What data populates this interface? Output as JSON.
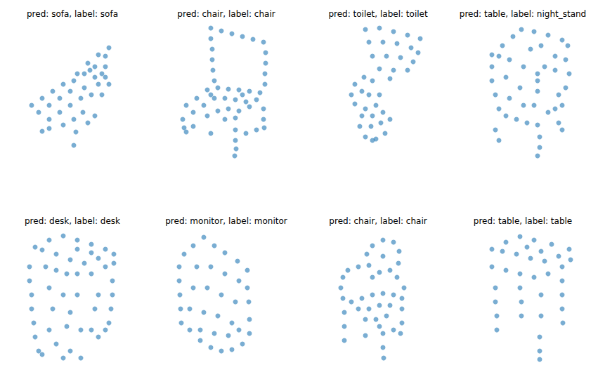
{
  "chart_data": [
    {
      "type": "scatter",
      "title": "pred: sofa, label: sofa",
      "xlim": [
        0,
        180
      ],
      "ylim": [
        0,
        210
      ],
      "tick_labels": false,
      "color": "#1f77b4",
      "marker": "circle",
      "points": [
        [
          37,
          90
        ],
        [
          52,
          100
        ],
        [
          67,
          110
        ],
        [
          82,
          120
        ],
        [
          47,
          80
        ],
        [
          62,
          90
        ],
        [
          77,
          100
        ],
        [
          92,
          110
        ],
        [
          62,
          70
        ],
        [
          77,
          80
        ],
        [
          92,
          90
        ],
        [
          107,
          100
        ],
        [
          82,
          62
        ],
        [
          97,
          70
        ],
        [
          110,
          80
        ],
        [
          100,
          52
        ],
        [
          117,
          65
        ],
        [
          127,
          75
        ],
        [
          97,
          125
        ],
        [
          112,
          135
        ],
        [
          127,
          145
        ],
        [
          142,
          160
        ],
        [
          147,
          172
        ],
        [
          132,
          162
        ],
        [
          117,
          150
        ],
        [
          102,
          135
        ],
        [
          142,
          145
        ],
        [
          142,
          130
        ],
        [
          147,
          120
        ],
        [
          132,
          120
        ],
        [
          122,
          105
        ],
        [
          137,
          135
        ],
        [
          127,
          130
        ],
        [
          112,
          115
        ],
        [
          137,
          105
        ],
        [
          120,
          140
        ],
        [
          52,
          53
        ],
        [
          97,
          33
        ],
        [
          62,
          57
        ]
      ]
    },
    {
      "type": "scatter",
      "title": "pred: chair, label: chair",
      "xlim": [
        0,
        180
      ],
      "ylim": [
        0,
        210
      ],
      "tick_labels": false,
      "color": "#1f77b4",
      "marker": "circle",
      "points": [
        [
          73,
          200
        ],
        [
          88,
          196
        ],
        [
          103,
          192
        ],
        [
          118,
          188
        ],
        [
          133,
          184
        ],
        [
          148,
          180
        ],
        [
          73,
          185
        ],
        [
          75,
          170
        ],
        [
          75,
          155
        ],
        [
          76,
          140
        ],
        [
          78,
          125
        ],
        [
          151,
          165
        ],
        [
          151,
          150
        ],
        [
          150,
          135
        ],
        [
          150,
          120
        ],
        [
          38,
          90
        ],
        [
          53,
          100
        ],
        [
          68,
          112
        ],
        [
          83,
          115
        ],
        [
          98,
          113
        ],
        [
          113,
          112
        ],
        [
          128,
          110
        ],
        [
          143,
          108
        ],
        [
          48,
          80
        ],
        [
          63,
          90
        ],
        [
          78,
          100
        ],
        [
          93,
          100
        ],
        [
          108,
          98
        ],
        [
          123,
          95
        ],
        [
          138,
          98
        ],
        [
          68,
          75
        ],
        [
          83,
          82
        ],
        [
          98,
          85
        ],
        [
          113,
          82
        ],
        [
          128,
          88
        ],
        [
          93,
          70
        ],
        [
          108,
          72
        ],
        [
          73,
          105
        ],
        [
          118,
          105
        ],
        [
          33,
          70
        ],
        [
          35,
          58
        ],
        [
          38,
          52
        ],
        [
          108,
          55
        ],
        [
          108,
          40
        ],
        [
          109,
          28
        ],
        [
          107,
          18
        ],
        [
          148,
          85
        ],
        [
          148,
          70
        ],
        [
          149,
          58
        ],
        [
          48,
          60
        ],
        [
          73,
          50
        ],
        [
          123,
          50
        ],
        [
          138,
          55
        ]
      ]
    },
    {
      "type": "scatter",
      "title": "pred: toilet, label: toilet",
      "xlim": [
        0,
        180
      ],
      "ylim": [
        0,
        210
      ],
      "tick_labels": false,
      "color": "#1f77b4",
      "marker": "circle",
      "points": [
        [
          77,
          198
        ],
        [
          97,
          200
        ],
        [
          117,
          195
        ],
        [
          137,
          190
        ],
        [
          155,
          185
        ],
        [
          82,
          180
        ],
        [
          102,
          180
        ],
        [
          122,
          178
        ],
        [
          142,
          172
        ],
        [
          152,
          165
        ],
        [
          87,
          160
        ],
        [
          107,
          160
        ],
        [
          127,
          158
        ],
        [
          145,
          152
        ],
        [
          97,
          142
        ],
        [
          117,
          140
        ],
        [
          137,
          140
        ],
        [
          112,
          128
        ],
        [
          62,
          120
        ],
        [
          57,
          105
        ],
        [
          62,
          92
        ],
        [
          77,
          85
        ],
        [
          92,
          90
        ],
        [
          97,
          105
        ],
        [
          87,
          125
        ],
        [
          75,
          130
        ],
        [
          72,
          110
        ],
        [
          82,
          105
        ],
        [
          72,
          75
        ],
        [
          87,
          75
        ],
        [
          102,
          80
        ],
        [
          69,
          60
        ],
        [
          85,
          60
        ],
        [
          99,
          65
        ],
        [
          77,
          45
        ],
        [
          92,
          42
        ],
        [
          105,
          50
        ],
        [
          112,
          70
        ],
        [
          87,
          40
        ]
      ]
    },
    {
      "type": "scatter",
      "title": "pred: table, label: night_stand",
      "xlim": [
        0,
        180
      ],
      "ylim": [
        0,
        210
      ],
      "tick_labels": false,
      "color": "#1f77b4",
      "marker": "circle",
      "points": [
        [
          51,
          162
        ],
        [
          66,
          175
        ],
        [
          81,
          188
        ],
        [
          93,
          198
        ],
        [
          111,
          195
        ],
        [
          131,
          190
        ],
        [
          151,
          183
        ],
        [
          159,
          175
        ],
        [
          141,
          160
        ],
        [
          126,
          145
        ],
        [
          116,
          135
        ],
        [
          96,
          145
        ],
        [
          76,
          155
        ],
        [
          61,
          160
        ],
        [
          106,
          170
        ],
        [
          121,
          175
        ],
        [
          51,
          145
        ],
        [
          51,
          125
        ],
        [
          56,
          105
        ],
        [
          61,
          85
        ],
        [
          71,
          75
        ],
        [
          86,
          70
        ],
        [
          101,
          65
        ],
        [
          116,
          62
        ],
        [
          111,
          90
        ],
        [
          116,
          110
        ],
        [
          116,
          125
        ],
        [
          91,
          115
        ],
        [
          76,
          100
        ],
        [
          96,
          90
        ],
        [
          71,
          130
        ],
        [
          141,
          140
        ],
        [
          156,
          155
        ],
        [
          161,
          135
        ],
        [
          156,
          115
        ],
        [
          151,
          90
        ],
        [
          141,
          85
        ],
        [
          131,
          80
        ],
        [
          146,
          105
        ],
        [
          56,
          55
        ],
        [
          61,
          40
        ],
        [
          119,
          45
        ],
        [
          119,
          30
        ],
        [
          116,
          18
        ],
        [
          146,
          65
        ],
        [
          151,
          55
        ]
      ]
    },
    {
      "type": "scatter",
      "title": "pred: desk, label: desk",
      "xlim": [
        0,
        180
      ],
      "ylim": [
        0,
        210
      ],
      "tick_labels": false,
      "color": "#1f77b4",
      "marker": "circle",
      "points": [
        [
          42,
          178
        ],
        [
          62,
          188
        ],
        [
          82,
          194
        ],
        [
          102,
          188
        ],
        [
          122,
          182
        ],
        [
          142,
          175
        ],
        [
          154,
          168
        ],
        [
          132,
          162
        ],
        [
          112,
          155
        ],
        [
          92,
          160
        ],
        [
          72,
          168
        ],
        [
          52,
          174
        ],
        [
          102,
          175
        ],
        [
          122,
          170
        ],
        [
          34,
          150
        ],
        [
          34,
          130
        ],
        [
          37,
          110
        ],
        [
          37,
          90
        ],
        [
          40,
          70
        ],
        [
          42,
          50
        ],
        [
          47,
          30
        ],
        [
          57,
          150
        ],
        [
          72,
          145
        ],
        [
          87,
          140
        ],
        [
          102,
          140
        ],
        [
          62,
          120
        ],
        [
          82,
          110
        ],
        [
          102,
          110
        ],
        [
          67,
          90
        ],
        [
          92,
          85
        ],
        [
          62,
          60
        ],
        [
          87,
          65
        ],
        [
          107,
          60
        ],
        [
          72,
          40
        ],
        [
          92,
          30
        ],
        [
          107,
          20
        ],
        [
          52,
          25
        ],
        [
          82,
          20
        ],
        [
          122,
          140
        ],
        [
          142,
          150
        ],
        [
          154,
          155
        ],
        [
          152,
          130
        ],
        [
          152,
          110
        ],
        [
          150,
          90
        ],
        [
          147,
          70
        ],
        [
          142,
          60
        ],
        [
          132,
          50
        ],
        [
          122,
          60
        ],
        [
          132,
          110
        ],
        [
          127,
          90
        ]
      ]
    },
    {
      "type": "scatter",
      "title": "pred: monitor, label: monitor",
      "xlim": [
        0,
        180
      ],
      "ylim": [
        0,
        210
      ],
      "tick_labels": false,
      "color": "#1f77b4",
      "marker": "circle",
      "points": [
        [
          63,
          192
        ],
        [
          48,
          180
        ],
        [
          35,
          168
        ],
        [
          78,
          180
        ],
        [
          93,
          170
        ],
        [
          111,
          158
        ],
        [
          125,
          145
        ],
        [
          28,
          150
        ],
        [
          28,
          130
        ],
        [
          29,
          110
        ],
        [
          30,
          90
        ],
        [
          31,
          70
        ],
        [
          43,
          60
        ],
        [
          58,
          45
        ],
        [
          73,
          35
        ],
        [
          88,
          30
        ],
        [
          103,
          32
        ],
        [
          118,
          40
        ],
        [
          128,
          55
        ],
        [
          128,
          75
        ],
        [
          127,
          100
        ],
        [
          125,
          120
        ],
        [
          53,
          150
        ],
        [
          73,
          150
        ],
        [
          93,
          140
        ],
        [
          113,
          130
        ],
        [
          48,
          120
        ],
        [
          68,
          120
        ],
        [
          88,
          110
        ],
        [
          108,
          100
        ],
        [
          43,
          90
        ],
        [
          63,
          85
        ],
        [
          83,
          80
        ],
        [
          103,
          70
        ],
        [
          58,
          60
        ],
        [
          78,
          55
        ],
        [
          98,
          52
        ],
        [
          113,
          60
        ]
      ]
    },
    {
      "type": "scatter",
      "title": "pred: chair, label: chair",
      "xlim": [
        0,
        180
      ],
      "ylim": [
        0,
        210
      ],
      "tick_labels": false,
      "color": "#1f77b4",
      "marker": "circle",
      "points": [
        [
          87,
          180
        ],
        [
          102,
          188
        ],
        [
          117,
          185
        ],
        [
          125,
          172
        ],
        [
          124,
          155
        ],
        [
          112,
          145
        ],
        [
          97,
          142
        ],
        [
          82,
          152
        ],
        [
          79,
          168
        ],
        [
          102,
          165
        ],
        [
          87,
          135
        ],
        [
          122,
          135
        ],
        [
          132,
          120
        ],
        [
          52,
          145
        ],
        [
          67,
          150
        ],
        [
          45,
          135
        ],
        [
          42,
          120
        ],
        [
          45,
          105
        ],
        [
          57,
          100
        ],
        [
          72,
          105
        ],
        [
          87,
          110
        ],
        [
          102,
          112
        ],
        [
          117,
          110
        ],
        [
          129,
          105
        ],
        [
          67,
          90
        ],
        [
          82,
          90
        ],
        [
          97,
          95
        ],
        [
          112,
          95
        ],
        [
          77,
          75
        ],
        [
          92,
          75
        ],
        [
          107,
          80
        ],
        [
          97,
          65
        ],
        [
          47,
          85
        ],
        [
          47,
          65
        ],
        [
          47,
          45
        ],
        [
          102,
          55
        ],
        [
          102,
          35
        ],
        [
          103,
          20
        ],
        [
          129,
          90
        ],
        [
          129,
          70
        ],
        [
          127,
          55
        ],
        [
          77,
          52
        ],
        [
          117,
          60
        ]
      ]
    },
    {
      "type": "scatter",
      "title": "pred: table, label: table",
      "xlim": [
        0,
        180
      ],
      "ylim": [
        0,
        210
      ],
      "tick_labels": false,
      "color": "#1f77b4",
      "marker": "circle",
      "points": [
        [
          51,
          175
        ],
        [
          71,
          185
        ],
        [
          91,
          193
        ],
        [
          111,
          188
        ],
        [
          136,
          182
        ],
        [
          161,
          175
        ],
        [
          146,
          165
        ],
        [
          126,
          158
        ],
        [
          106,
          162
        ],
        [
          86,
          168
        ],
        [
          66,
          172
        ],
        [
          101,
          178
        ],
        [
          121,
          172
        ],
        [
          51,
          150
        ],
        [
          71,
          145
        ],
        [
          91,
          140
        ],
        [
          111,
          135
        ],
        [
          131,
          140
        ],
        [
          151,
          150
        ],
        [
          163,
          160
        ],
        [
          56,
          120
        ],
        [
          56,
          100
        ],
        [
          58,
          80
        ],
        [
          58,
          60
        ],
        [
          91,
          120
        ],
        [
          93,
          100
        ],
        [
          93,
          80
        ],
        [
          121,
          110
        ],
        [
          121,
          80
        ],
        [
          119,
          50
        ],
        [
          119,
          30
        ],
        [
          119,
          18
        ],
        [
          151,
          130
        ],
        [
          151,
          110
        ],
        [
          151,
          90
        ],
        [
          152,
          70
        ]
      ]
    }
  ]
}
